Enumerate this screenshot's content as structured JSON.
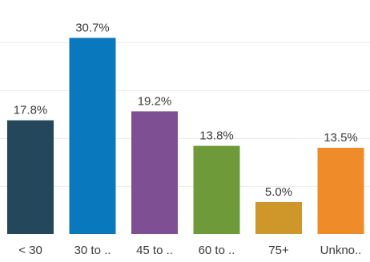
{
  "chart_data": {
    "type": "bar",
    "categories": [
      "< 30",
      "30 to ..",
      "45 to ..",
      "60 to ..",
      "75+",
      "Unkno.."
    ],
    "values": [
      17.8,
      30.7,
      19.2,
      13.8,
      5.0,
      13.5
    ],
    "data_labels": [
      "17.8%",
      "30.7%",
      "19.2%",
      "13.8%",
      "5.0%",
      "13.5%"
    ],
    "colors": [
      "#24475c",
      "#0a78bd",
      "#7e4f92",
      "#6f9a39",
      "#cf962a",
      "#f08b2a"
    ],
    "ylim": [
      0,
      35
    ],
    "grid": true,
    "gridlines": [
      7.5,
      15,
      22.5,
      30
    ],
    "legend": "none",
    "title": "",
    "xlabel": "",
    "ylabel": ""
  }
}
